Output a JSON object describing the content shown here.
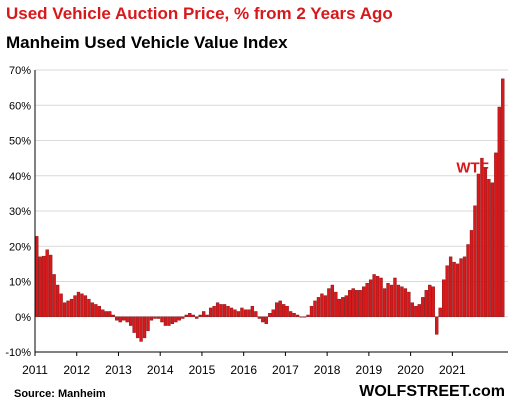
{
  "header": {
    "title": "Used Vehicle Auction Price, % from 2 Years Ago",
    "subtitle": "Manheim Used Vehicle Value Index"
  },
  "footer": {
    "source": "Source: Manheim",
    "brand": "WOLFSTREET.com"
  },
  "colors": {
    "bar_fill": "#d7191c",
    "bar_stroke": "#7a0b0b",
    "title": "#d7191c",
    "grid": "#d9d9d9"
  },
  "chart_data": {
    "type": "bar",
    "title": "Used Vehicle Auction Price, % from 2 Years Ago",
    "subtitle": "Manheim Used Vehicle Value Index",
    "xlabel": "",
    "ylabel": "",
    "ylim": [
      -10,
      70
    ],
    "y_ticks": [
      "-10%",
      "0%",
      "10%",
      "20%",
      "30%",
      "40%",
      "50%",
      "60%",
      "70%"
    ],
    "y_tick_values": [
      -10,
      0,
      10,
      20,
      30,
      40,
      50,
      60,
      70
    ],
    "x_ticks": [
      "2011",
      "2012",
      "2013",
      "2014",
      "2015",
      "2016",
      "2017",
      "2018",
      "2019",
      "2020",
      "2021"
    ],
    "grid": true,
    "frequency": "monthly",
    "start": "2011-01",
    "annotations": [
      {
        "text": "WTF",
        "month": "2021-11"
      }
    ],
    "series": [
      {
        "values": [
          22.8,
          17.0,
          17.2,
          19.0,
          17.5,
          12.0,
          9.0,
          6.5,
          4.0,
          4.5,
          5.0,
          6.0,
          7.0,
          6.5,
          6.0,
          5.0,
          4.0,
          3.5,
          3.0,
          2.0,
          1.5,
          1.5,
          0.5,
          -1.0,
          -1.5,
          -1.0,
          -1.5,
          -2.5,
          -4.5,
          -6.0,
          -7.0,
          -6.0,
          -4.0,
          -1.0,
          -0.5,
          -0.5,
          -1.5,
          -2.5,
          -2.5,
          -2.0,
          -1.5,
          -1.0,
          -0.5,
          0.5,
          1.0,
          0.5,
          -0.5,
          0.5,
          1.5,
          0.5,
          2.5,
          3.0,
          4.0,
          3.5,
          3.5,
          3.0,
          2.5,
          2.0,
          1.5,
          2.5,
          2.0,
          2.0,
          3.0,
          1.5,
          -0.5,
          -1.5,
          -2.0,
          1.0,
          2.0,
          4.0,
          4.5,
          3.5,
          3.0,
          1.5,
          1.0,
          0.5,
          0.0,
          0.0,
          0.5,
          3.0,
          4.5,
          5.5,
          6.5,
          6.0,
          8.0,
          9.0,
          7.0,
          5.0,
          5.5,
          6.0,
          7.5,
          8.0,
          7.5,
          7.5,
          8.5,
          9.5,
          10.5,
          12.0,
          11.5,
          11.0,
          8.0,
          9.5,
          9.0,
          11.0,
          9.0,
          8.5,
          8.0,
          7.0,
          4.0,
          3.0,
          3.5,
          5.5,
          7.5,
          9.0,
          8.5,
          -5.0,
          2.5,
          10.5,
          14.5,
          17.0,
          15.5,
          15.0,
          16.5,
          17.0,
          20.5,
          24.5,
          31.5,
          40.5,
          45.0,
          42.0,
          39.0,
          38.0,
          46.5,
          59.5,
          67.5
        ]
      }
    ]
  }
}
